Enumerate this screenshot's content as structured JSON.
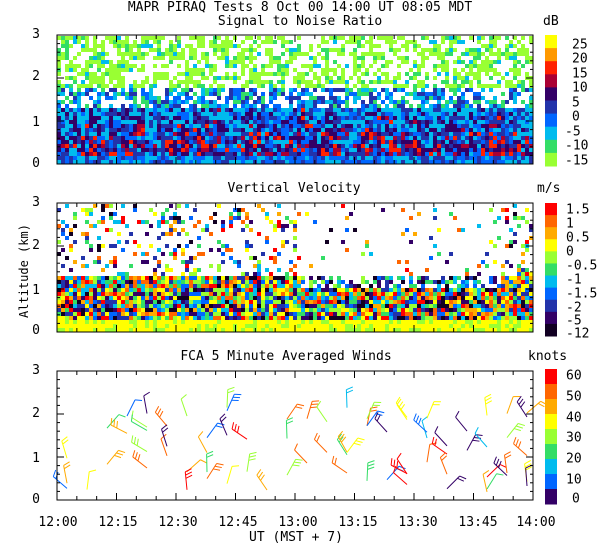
{
  "header": {
    "title": "MAPR PIRAQ Tests  8 Oct 00  14:00 UT  08:05  MDT"
  },
  "x_axis": {
    "ticks": [
      "12:00",
      "12:15",
      "12:30",
      "12:45",
      "13:00",
      "13:15",
      "13:30",
      "13:45",
      "14:00"
    ],
    "label": "UT  (MST + 7)"
  },
  "y_axis_label": "Altitude (km)",
  "chart_data": [
    {
      "type": "heatmap",
      "title": "Signal to Noise Ratio",
      "xlabel": "UT  (MST + 7)",
      "ylabel": "Altitude (km)",
      "xlim": [
        "12:00",
        "14:00"
      ],
      "ylim": [
        0,
        3
      ],
      "y_ticks": [
        "0",
        "1",
        "2",
        "3"
      ],
      "colorbar": {
        "unit": "dB",
        "labels": [
          "25",
          "20",
          "15",
          "10",
          "5",
          "0",
          "-5",
          "-10",
          "-15"
        ],
        "colors": [
          "#ffff00",
          "#ff9900",
          "#ff2200",
          "#aa0033",
          "#330066",
          "#2233aa",
          "#0066ff",
          "#00bbee",
          "#33dd66",
          "#99ff33"
        ]
      }
    },
    {
      "type": "heatmap",
      "title": "Vertical Velocity",
      "xlabel": "UT  (MST + 7)",
      "ylabel": "Altitude (km)",
      "xlim": [
        "12:00",
        "14:00"
      ],
      "ylim": [
        0,
        3
      ],
      "y_ticks": [
        "0",
        "1",
        "2",
        "3"
      ],
      "colorbar": {
        "unit": "m/s",
        "labels": [
          "1.5",
          "1",
          "0.5",
          "0",
          "-0.5",
          "-1",
          "-1.5",
          "-2",
          "-5",
          "-12"
        ],
        "colors": [
          "#ff0000",
          "#ff6600",
          "#ffaa00",
          "#ffff00",
          "#99ff33",
          "#33dd66",
          "#00bbee",
          "#0066ff",
          "#2233aa",
          "#330066",
          "#110022"
        ]
      }
    },
    {
      "type": "scatter",
      "title": "FCA 5 Minute Averaged Winds",
      "xlabel": "UT  (MST + 7)",
      "ylabel": "Altitude (km)",
      "xlim": [
        "12:00",
        "14:00"
      ],
      "ylim": [
        0,
        3
      ],
      "y_ticks": [
        "0",
        "1",
        "2",
        "3"
      ],
      "colorbar": {
        "unit": "knots",
        "labels": [
          "60",
          "50",
          "40",
          "30",
          "20",
          "10",
          "0"
        ],
        "colors": [
          "#ff0000",
          "#ff6600",
          "#ffaa00",
          "#ffff00",
          "#99ff33",
          "#33dd66",
          "#00bbee",
          "#0066ff",
          "#330066"
        ]
      }
    }
  ]
}
